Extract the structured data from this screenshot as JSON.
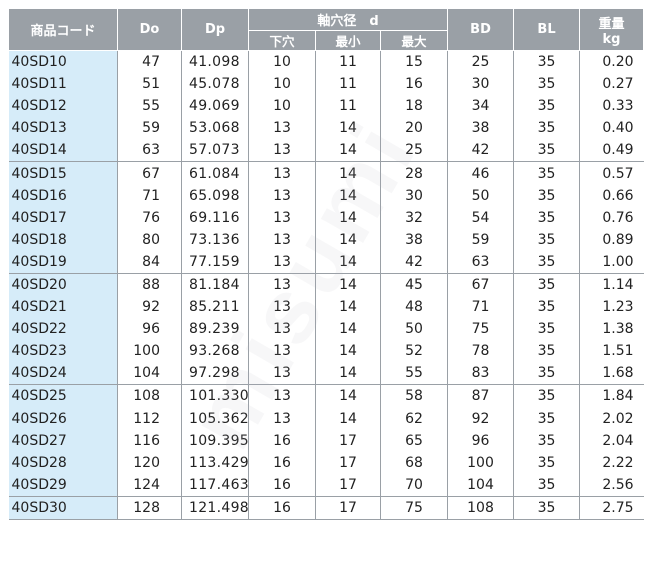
{
  "watermark": "misumi",
  "header": {
    "code": "商品コード",
    "do": "Do",
    "dp": "Dp",
    "shaft": "軸穴径　d",
    "pilot": "下穴",
    "min": "最小",
    "max": "最大",
    "bd": "BD",
    "bl": "BL",
    "weight_line1": "重量",
    "weight_line2": "kg"
  },
  "rows": [
    [
      "40SD10",
      "47",
      "41.098",
      "10",
      "11",
      "15",
      "25",
      "35",
      "0.20"
    ],
    [
      "40SD11",
      "51",
      "45.078",
      "10",
      "11",
      "16",
      "30",
      "35",
      "0.27"
    ],
    [
      "40SD12",
      "55",
      "49.069",
      "10",
      "11",
      "18",
      "34",
      "35",
      "0.33"
    ],
    [
      "40SD13",
      "59",
      "53.068",
      "13",
      "14",
      "20",
      "38",
      "35",
      "0.40"
    ],
    [
      "40SD14",
      "63",
      "57.073",
      "13",
      "14",
      "25",
      "42",
      "35",
      "0.49"
    ],
    [
      "40SD15",
      "67",
      "61.084",
      "13",
      "14",
      "28",
      "46",
      "35",
      "0.57"
    ],
    [
      "40SD16",
      "71",
      "65.098",
      "13",
      "14",
      "30",
      "50",
      "35",
      "0.66"
    ],
    [
      "40SD17",
      "76",
      "69.116",
      "13",
      "14",
      "32",
      "54",
      "35",
      "0.76"
    ],
    [
      "40SD18",
      "80",
      "73.136",
      "13",
      "14",
      "38",
      "59",
      "35",
      "0.89"
    ],
    [
      "40SD19",
      "84",
      "77.159",
      "13",
      "14",
      "42",
      "63",
      "35",
      "1.00"
    ],
    [
      "40SD20",
      "88",
      "81.184",
      "13",
      "14",
      "45",
      "67",
      "35",
      "1.14"
    ],
    [
      "40SD21",
      "92",
      "85.211",
      "13",
      "14",
      "48",
      "71",
      "35",
      "1.23"
    ],
    [
      "40SD22",
      "96",
      "89.239",
      "13",
      "14",
      "50",
      "75",
      "35",
      "1.38"
    ],
    [
      "40SD23",
      "100",
      "93.268",
      "13",
      "14",
      "52",
      "78",
      "35",
      "1.51"
    ],
    [
      "40SD24",
      "104",
      "97.298",
      "13",
      "14",
      "55",
      "83",
      "35",
      "1.68"
    ],
    [
      "40SD25",
      "108",
      "101.330",
      "13",
      "14",
      "58",
      "87",
      "35",
      "1.84"
    ],
    [
      "40SD26",
      "112",
      "105.362",
      "13",
      "14",
      "62",
      "92",
      "35",
      "2.02"
    ],
    [
      "40SD27",
      "116",
      "109.395",
      "16",
      "17",
      "65",
      "96",
      "35",
      "2.04"
    ],
    [
      "40SD28",
      "120",
      "113.429",
      "16",
      "17",
      "68",
      "100",
      "35",
      "2.22"
    ],
    [
      "40SD29",
      "124",
      "117.463",
      "16",
      "17",
      "70",
      "104",
      "35",
      "2.56"
    ],
    [
      "40SD30",
      "128",
      "121.498",
      "16",
      "17",
      "75",
      "108",
      "35",
      "2.75"
    ]
  ]
}
